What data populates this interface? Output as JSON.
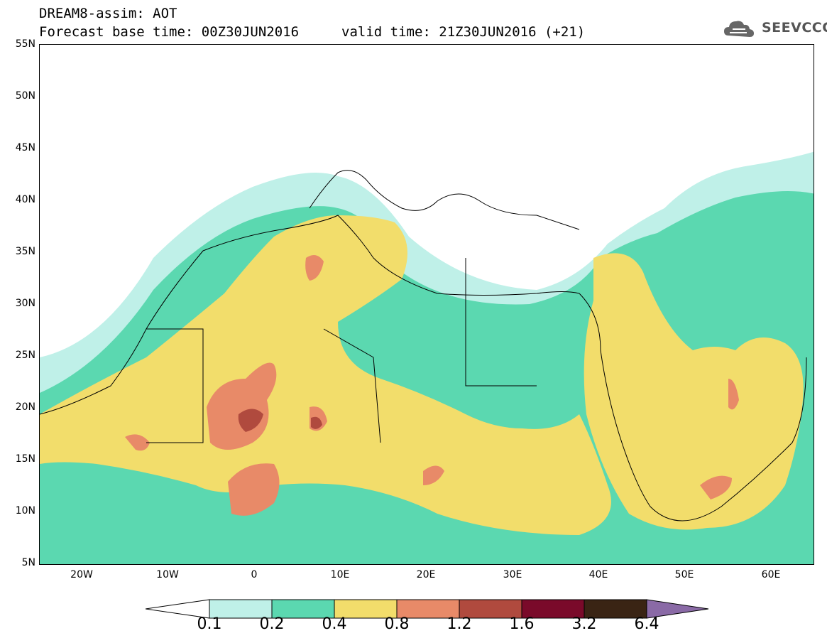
{
  "header": {
    "title": "DREAM8-assim: AOT",
    "base_time": "Forecast base time: 00Z30JUN2016",
    "valid_time": "valid time: 21Z30JUN2016 (+21)"
  },
  "logo": {
    "text": "SEEVCCC"
  },
  "map": {
    "lat_labels": [
      "55N",
      "50N",
      "45N",
      "40N",
      "35N",
      "30N",
      "25N",
      "20N",
      "15N",
      "10N",
      "5N"
    ],
    "lon_labels": [
      "20W",
      "10W",
      "0",
      "10E",
      "20E",
      "30E",
      "40E",
      "50E",
      "60E"
    ],
    "lat_range": [
      5,
      55
    ],
    "lon_range": [
      -25,
      65
    ],
    "field": "AOT"
  },
  "legend": {
    "thresholds": [
      "0.1",
      "0.2",
      "0.4",
      "0.8",
      "1.2",
      "1.6",
      "3.2",
      "6.4"
    ],
    "colors": [
      "#bff0e8",
      "#5bd8b0",
      "#f2dd6b",
      "#e88a68",
      "#b04a3e",
      "#7a0a2a",
      "#3a2414",
      "#8a6aa6"
    ]
  }
}
